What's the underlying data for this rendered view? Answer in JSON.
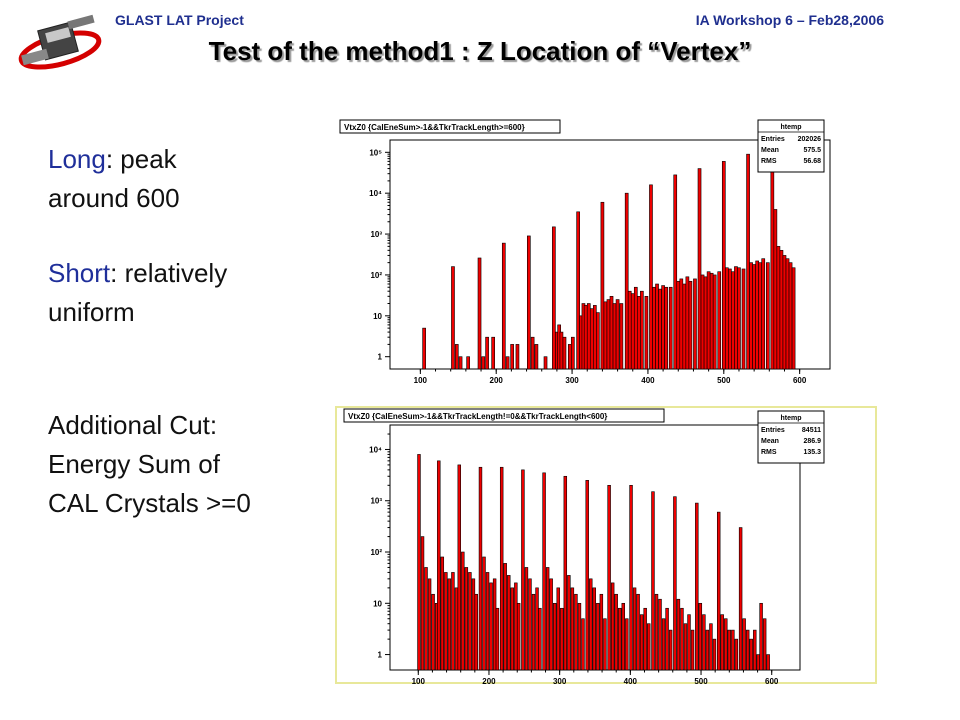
{
  "header": {
    "left": "GLAST LAT Project",
    "right": "IA Workshop 6 – Feb28,2006"
  },
  "title": "Test of the method1 : Z Location of “Vertex”",
  "notes": {
    "long_label": "Long",
    "long_rest": ": peak",
    "long_line2": "around 600",
    "short_label": "Short",
    "short_rest": ": relatively",
    "short_line2": "uniform",
    "cut_line1": "Additional Cut:",
    "cut_line2": "Energy Sum of",
    "cut_line3": "CAL Crystals >=0"
  },
  "colors": {
    "bar": "#ee0000",
    "stroke": "#000000"
  },
  "chart_data": [
    {
      "type": "bar",
      "title": "VtxZ0 {CalEneSum>-1&&TkrTrackLength>=600}",
      "stats": {
        "name": "htemp",
        "rows": [
          [
            "Entries",
            "202026"
          ],
          [
            "Mean",
            "575.5"
          ],
          [
            "RMS",
            "56.68"
          ]
        ]
      },
      "log_y": true,
      "xlim": [
        60,
        640
      ],
      "ylim": [
        0.5,
        200000
      ],
      "xticks": [
        "100",
        "200",
        "300",
        "400",
        "500",
        "600"
      ],
      "yticks": [
        "1",
        "10",
        "10²",
        "10³",
        "10⁴",
        "10⁵"
      ],
      "bins": [
        [
          105,
          5
        ],
        [
          143,
          160
        ],
        [
          148,
          2
        ],
        [
          153,
          1
        ],
        [
          163,
          1
        ],
        [
          178,
          260
        ],
        [
          183,
          1
        ],
        [
          188,
          3
        ],
        [
          196,
          3
        ],
        [
          210,
          600
        ],
        [
          215,
          1
        ],
        [
          221,
          2
        ],
        [
          228,
          2
        ],
        [
          243,
          900
        ],
        [
          248,
          3
        ],
        [
          253,
          2
        ],
        [
          265,
          1
        ],
        [
          276,
          1500
        ],
        [
          280,
          4
        ],
        [
          283,
          6
        ],
        [
          286,
          4
        ],
        [
          290,
          3
        ],
        [
          297,
          2
        ],
        [
          301,
          3
        ],
        [
          308,
          3500
        ],
        [
          312,
          10
        ],
        [
          315,
          20
        ],
        [
          318,
          18
        ],
        [
          322,
          20
        ],
        [
          326,
          15
        ],
        [
          330,
          18
        ],
        [
          334,
          12
        ],
        [
          340,
          6000
        ],
        [
          344,
          22
        ],
        [
          348,
          25
        ],
        [
          352,
          30
        ],
        [
          356,
          20
        ],
        [
          360,
          25
        ],
        [
          365,
          20
        ],
        [
          372,
          10000
        ],
        [
          376,
          40
        ],
        [
          380,
          35
        ],
        [
          384,
          50
        ],
        [
          388,
          30
        ],
        [
          392,
          40
        ],
        [
          398,
          30
        ],
        [
          404,
          16000
        ],
        [
          408,
          50
        ],
        [
          412,
          60
        ],
        [
          416,
          45
        ],
        [
          420,
          55
        ],
        [
          424,
          50
        ],
        [
          430,
          50
        ],
        [
          436,
          28000
        ],
        [
          440,
          70
        ],
        [
          444,
          80
        ],
        [
          448,
          60
        ],
        [
          452,
          90
        ],
        [
          456,
          70
        ],
        [
          462,
          80
        ],
        [
          468,
          40000
        ],
        [
          472,
          100
        ],
        [
          476,
          90
        ],
        [
          480,
          120
        ],
        [
          484,
          110
        ],
        [
          488,
          100
        ],
        [
          494,
          120
        ],
        [
          500,
          60000
        ],
        [
          504,
          150
        ],
        [
          508,
          140
        ],
        [
          512,
          120
        ],
        [
          516,
          160
        ],
        [
          520,
          150
        ],
        [
          526,
          140
        ],
        [
          532,
          90000
        ],
        [
          536,
          200
        ],
        [
          540,
          180
        ],
        [
          544,
          220
        ],
        [
          548,
          200
        ],
        [
          552,
          250
        ],
        [
          558,
          200
        ],
        [
          564,
          180000
        ],
        [
          568,
          4000
        ],
        [
          572,
          500
        ],
        [
          576,
          400
        ],
        [
          580,
          300
        ],
        [
          584,
          250
        ],
        [
          588,
          200
        ],
        [
          592,
          150
        ]
      ]
    },
    {
      "type": "bar",
      "title": "VtxZ0 {CalEneSum>-1&&TkrTrackLength!=0&&TkrTrackLength<600}",
      "stats": {
        "name": "htemp",
        "rows": [
          [
            "Entries",
            "84511"
          ],
          [
            "Mean",
            "286.9"
          ],
          [
            "RMS",
            "135.3"
          ]
        ]
      },
      "log_y": true,
      "xlim": [
        60,
        640
      ],
      "ylim": [
        0.5,
        30000
      ],
      "xticks": [
        "100",
        "200",
        "300",
        "400",
        "500",
        "600"
      ],
      "yticks": [
        "1",
        "10",
        "10²",
        "10³",
        "10⁴"
      ],
      "bins": [
        [
          101,
          8000
        ],
        [
          106,
          200
        ],
        [
          111,
          50
        ],
        [
          116,
          30
        ],
        [
          121,
          15
        ],
        [
          126,
          10
        ],
        [
          129,
          6000
        ],
        [
          134,
          80
        ],
        [
          139,
          40
        ],
        [
          144,
          30
        ],
        [
          149,
          40
        ],
        [
          154,
          20
        ],
        [
          158,
          5000
        ],
        [
          163,
          100
        ],
        [
          168,
          50
        ],
        [
          173,
          40
        ],
        [
          178,
          30
        ],
        [
          182,
          15
        ],
        [
          188,
          4500
        ],
        [
          193,
          80
        ],
        [
          198,
          40
        ],
        [
          203,
          25
        ],
        [
          208,
          30
        ],
        [
          212,
          8
        ],
        [
          218,
          4500
        ],
        [
          223,
          60
        ],
        [
          228,
          35
        ],
        [
          233,
          20
        ],
        [
          238,
          25
        ],
        [
          242,
          10
        ],
        [
          248,
          4000
        ],
        [
          253,
          50
        ],
        [
          258,
          30
        ],
        [
          263,
          15
        ],
        [
          268,
          20
        ],
        [
          272,
          8
        ],
        [
          278,
          3500
        ],
        [
          283,
          50
        ],
        [
          288,
          30
        ],
        [
          293,
          10
        ],
        [
          298,
          20
        ],
        [
          303,
          8
        ],
        [
          308,
          3000
        ],
        [
          313,
          35
        ],
        [
          318,
          20
        ],
        [
          323,
          15
        ],
        [
          328,
          10
        ],
        [
          333,
          5
        ],
        [
          339,
          2500
        ],
        [
          344,
          30
        ],
        [
          349,
          20
        ],
        [
          354,
          10
        ],
        [
          359,
          15
        ],
        [
          364,
          5
        ],
        [
          370,
          2000
        ],
        [
          375,
          25
        ],
        [
          380,
          15
        ],
        [
          385,
          8
        ],
        [
          390,
          10
        ],
        [
          395,
          5
        ],
        [
          401,
          2000
        ],
        [
          406,
          20
        ],
        [
          411,
          15
        ],
        [
          416,
          6
        ],
        [
          421,
          8
        ],
        [
          426,
          4
        ],
        [
          432,
          1500
        ],
        [
          437,
          15
        ],
        [
          442,
          12
        ],
        [
          447,
          5
        ],
        [
          452,
          8
        ],
        [
          457,
          3
        ],
        [
          463,
          1200
        ],
        [
          468,
          12
        ],
        [
          473,
          8
        ],
        [
          478,
          4
        ],
        [
          483,
          6
        ],
        [
          488,
          3
        ],
        [
          494,
          900
        ],
        [
          499,
          10
        ],
        [
          504,
          6
        ],
        [
          509,
          3
        ],
        [
          514,
          4
        ],
        [
          519,
          2
        ],
        [
          525,
          600
        ],
        [
          530,
          6
        ],
        [
          535,
          5
        ],
        [
          540,
          3
        ],
        [
          545,
          3
        ],
        [
          550,
          2
        ],
        [
          556,
          300
        ],
        [
          561,
          5
        ],
        [
          566,
          3
        ],
        [
          571,
          2
        ],
        [
          576,
          3
        ],
        [
          581,
          1
        ],
        [
          585,
          10
        ],
        [
          590,
          5
        ],
        [
          595,
          1
        ]
      ]
    }
  ]
}
